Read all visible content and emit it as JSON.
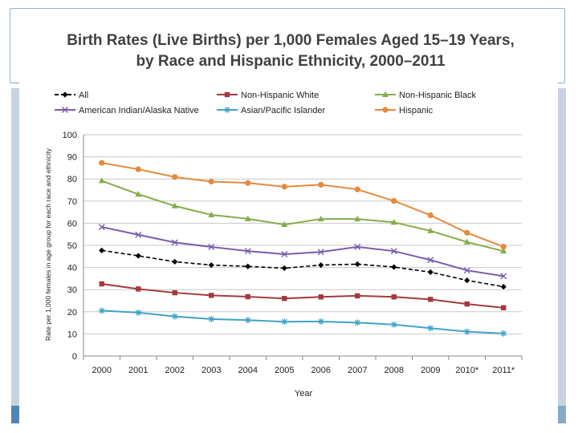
{
  "chart_data": {
    "type": "line",
    "title": "Birth Rates (Live Births) per 1,000 Females Aged 15–19 Years,",
    "subtitle": "by Race and Hispanic Ethnicity, 2000–2011",
    "xlabel": "Year",
    "ylabel": "Rate per 1,000 females in age group for each race and ethnicity",
    "categories": [
      "2000",
      "2001",
      "2002",
      "2003",
      "2004",
      "2005",
      "2006",
      "2007",
      "2008",
      "2009",
      "2010*",
      "2011*"
    ],
    "ylim": [
      0,
      100
    ],
    "yticks": [
      "0",
      "10",
      "20",
      "30",
      "40",
      "50",
      "60",
      "70",
      "80",
      "90",
      "100"
    ],
    "grid": true,
    "legend_position": "top",
    "series": [
      {
        "name": "All",
        "color": "#000000",
        "marker": "diamond",
        "dashed": true,
        "values": [
          47.7,
          45.3,
          42.6,
          41.1,
          40.5,
          39.7,
          41.1,
          41.5,
          40.2,
          37.9,
          34.2,
          31.3
        ]
      },
      {
        "name": "Non-Hispanic White",
        "color": "#a33b3b",
        "marker": "square",
        "dashed": false,
        "values": [
          32.6,
          30.3,
          28.6,
          27.4,
          26.8,
          26.0,
          26.7,
          27.2,
          26.7,
          25.6,
          23.5,
          21.8
        ]
      },
      {
        "name": "Non-Hispanic Black",
        "color": "#86ad4c",
        "marker": "triangle",
        "dashed": false,
        "values": [
          79.2,
          73.1,
          67.8,
          63.8,
          62.0,
          59.4,
          61.9,
          61.9,
          60.4,
          56.6,
          51.5,
          47.4
        ]
      },
      {
        "name": "American Indian/Alaska Native",
        "color": "#7a5bab",
        "marker": "x",
        "dashed": false,
        "values": [
          58.3,
          54.8,
          51.3,
          49.3,
          47.4,
          46.0,
          47.0,
          49.3,
          47.4,
          43.4,
          38.7,
          36.1
        ]
      },
      {
        "name": "Asian/Pacific Islander",
        "color": "#3fa3c8",
        "marker": "star",
        "dashed": false,
        "values": [
          20.5,
          19.6,
          17.9,
          16.7,
          16.2,
          15.5,
          15.6,
          15.1,
          14.2,
          12.6,
          11.0,
          10.2
        ]
      },
      {
        "name": "Hispanic",
        "color": "#e48a3c",
        "marker": "circle",
        "dashed": false,
        "values": [
          87.3,
          84.4,
          80.9,
          78.8,
          78.2,
          76.5,
          77.4,
          75.3,
          70.1,
          63.6,
          55.7,
          49.4
        ]
      }
    ]
  }
}
